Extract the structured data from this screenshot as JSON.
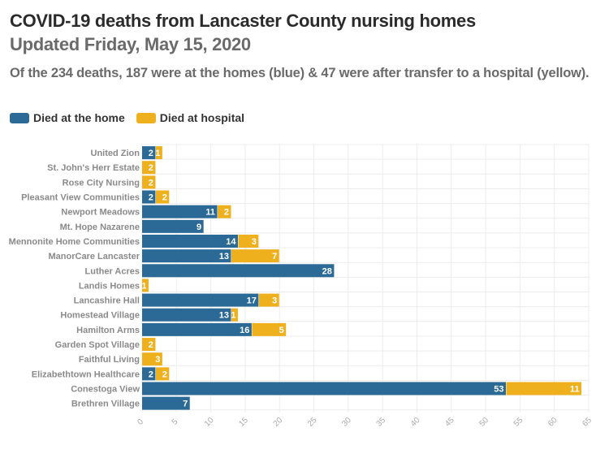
{
  "header": {
    "title": "COVID-19 deaths from Lancaster County nursing homes",
    "updated": "Updated Friday, May 15, 2020",
    "subtitle": "Of the 234 deaths, 187 were at the homes (blue) & 47 were after transfer to a hospital (yellow)."
  },
  "legend": [
    {
      "label": "Died at the home",
      "color": "#2b6a96"
    },
    {
      "label": "Died at hospital",
      "color": "#efb01e"
    }
  ],
  "chart_data": {
    "type": "bar",
    "orientation": "horizontal",
    "stacked": true,
    "title": "COVID-19 deaths from Lancaster County nursing homes",
    "xlabel": "",
    "ylabel": "",
    "xlim": [
      0,
      65
    ],
    "xticks": [
      0,
      5,
      10,
      15,
      20,
      25,
      30,
      35,
      40,
      45,
      50,
      55,
      60,
      65
    ],
    "grid": true,
    "legend_position": "top-left",
    "categories": [
      "United Zion",
      "St. John's Herr Estate",
      "Rose City Nursing",
      "Pleasant View Communities",
      "Newport Meadows",
      "Mt. Hope Nazarene",
      "Mennonite Home Communities",
      "ManorCare Lancaster",
      "Luther Acres",
      "Landis Homes",
      "Lancashire Hall",
      "Homestead Village",
      "Hamilton Arms",
      "Garden Spot Village",
      "Faithful Living",
      "Elizabethtown Healthcare",
      "Conestoga View",
      "Brethren Village"
    ],
    "series": [
      {
        "name": "Died at the home",
        "color": "#2b6a96",
        "values": [
          2,
          0,
          0,
          2,
          11,
          9,
          14,
          13,
          28,
          0,
          17,
          13,
          16,
          0,
          0,
          2,
          53,
          7
        ]
      },
      {
        "name": "Died at hospital",
        "color": "#efb01e",
        "values": [
          1,
          2,
          2,
          2,
          2,
          0,
          3,
          7,
          0,
          1,
          3,
          1,
          5,
          2,
          3,
          2,
          11,
          0
        ]
      }
    ]
  }
}
